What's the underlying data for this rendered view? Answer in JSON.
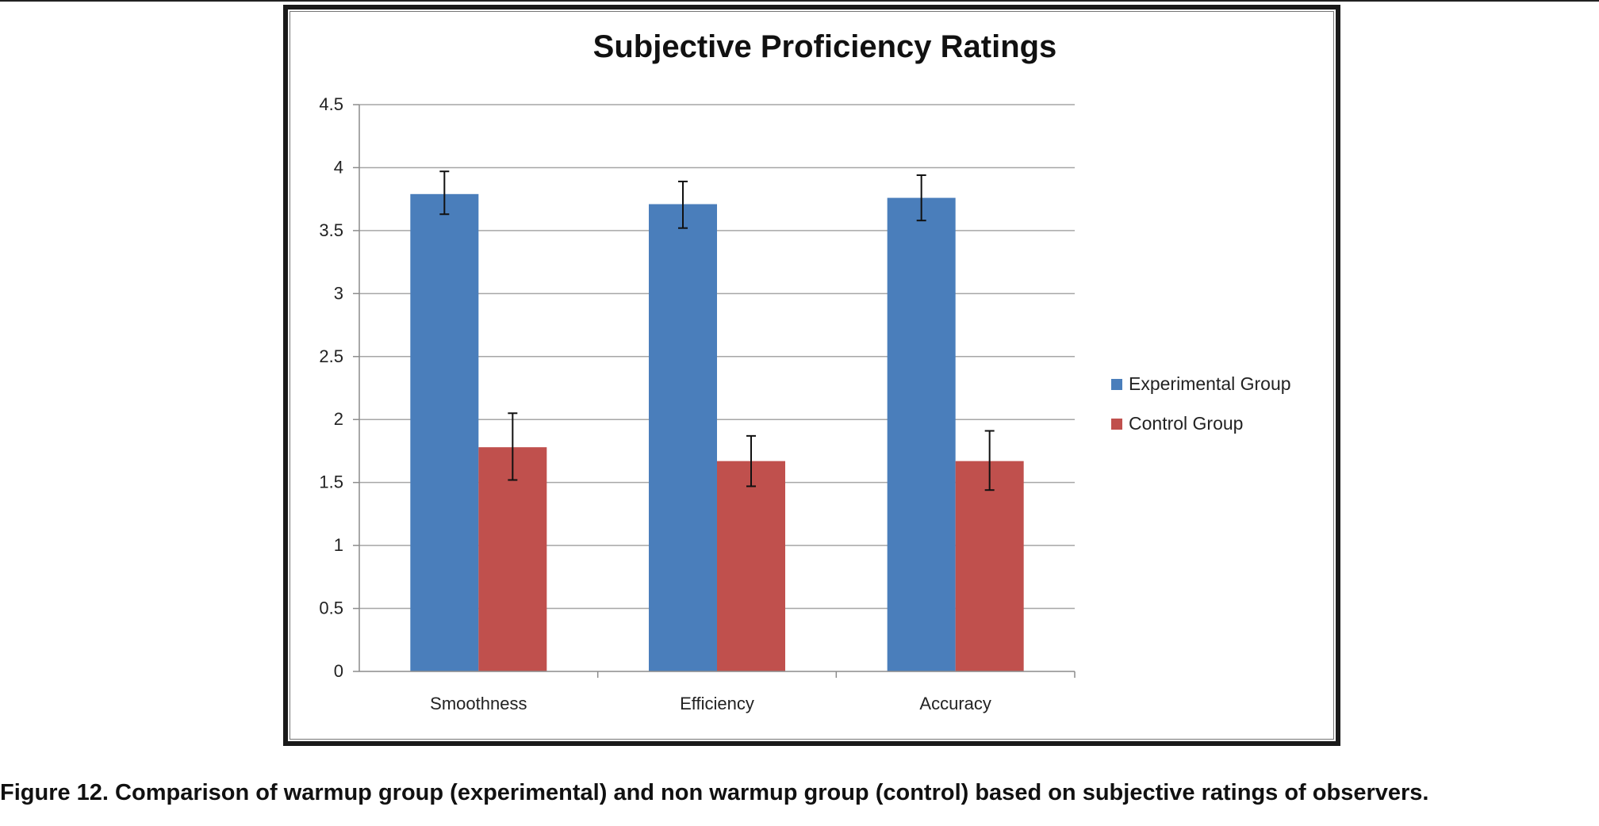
{
  "chart_data": {
    "type": "bar",
    "title": "Subjective Proficiency Ratings",
    "xlabel": "",
    "ylabel": "",
    "categories": [
      "Smoothness",
      "Efficiency",
      "Accuracy"
    ],
    "series": [
      {
        "name": "Experimental Group",
        "color": "#4a7ebb",
        "values": [
          3.79,
          3.71,
          3.76
        ],
        "error_low": [
          3.63,
          3.52,
          3.58
        ],
        "error_high": [
          3.97,
          3.89,
          3.94
        ]
      },
      {
        "name": "Control Group",
        "color": "#c0504d",
        "values": [
          1.78,
          1.67,
          1.67
        ],
        "error_low": [
          1.52,
          1.47,
          1.44
        ],
        "error_high": [
          2.05,
          1.87,
          1.91
        ]
      }
    ],
    "ylim": [
      0,
      4.5
    ],
    "yticks": [
      "0",
      "0.5",
      "1",
      "1.5",
      "2",
      "2.5",
      "3",
      "3.5",
      "4",
      "4.5"
    ],
    "grid": true,
    "legend_position": "right",
    "error_bars": true
  },
  "caption": "Figure 12. Comparison of warmup group (experimental) and non warmup group (control) based on subjective ratings of observers."
}
